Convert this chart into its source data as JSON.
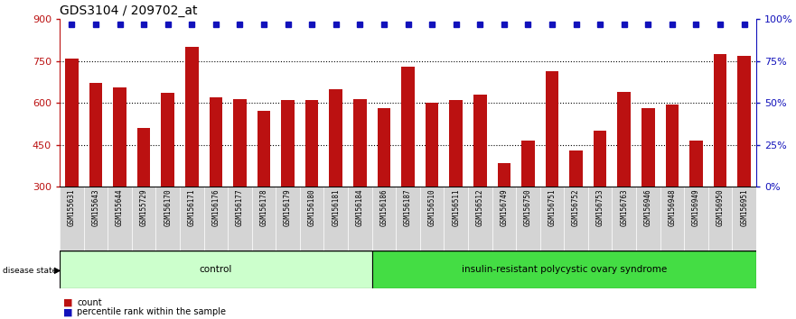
{
  "title": "GDS3104 / 209702_at",
  "samples": [
    "GSM155631",
    "GSM155643",
    "GSM155644",
    "GSM155729",
    "GSM156170",
    "GSM156171",
    "GSM156176",
    "GSM156177",
    "GSM156178",
    "GSM156179",
    "GSM156180",
    "GSM156181",
    "GSM156184",
    "GSM156186",
    "GSM156187",
    "GSM156510",
    "GSM156511",
    "GSM156512",
    "GSM156749",
    "GSM156750",
    "GSM156751",
    "GSM156752",
    "GSM156753",
    "GSM156763",
    "GSM156946",
    "GSM156948",
    "GSM156949",
    "GSM156950",
    "GSM156951"
  ],
  "bar_heights": [
    760,
    670,
    655,
    510,
    635,
    800,
    620,
    615,
    570,
    610,
    610,
    650,
    615,
    580,
    730,
    600,
    610,
    630,
    385,
    465,
    715,
    430,
    500,
    640,
    580,
    595,
    465,
    775,
    770
  ],
  "percentile_values": [
    97,
    97,
    97,
    97,
    97,
    97,
    97,
    97,
    97,
    97,
    97,
    97,
    97,
    97,
    97,
    97,
    97,
    97,
    97,
    97,
    97,
    97,
    97,
    97,
    97,
    97,
    97,
    97,
    97
  ],
  "group_labels": [
    "control",
    "insulin-resistant polycystic ovary syndrome"
  ],
  "group_sizes": [
    13,
    16
  ],
  "group_colors": [
    "#ccffcc",
    "#44dd44"
  ],
  "ylim_left": [
    300,
    900
  ],
  "ylim_right": [
    0,
    100
  ],
  "yticks_left": [
    300,
    450,
    600,
    750,
    900
  ],
  "yticks_right": [
    0,
    25,
    50,
    75,
    100
  ],
  "hgrid_values": [
    450,
    600,
    750
  ],
  "bar_color": "#bb1111",
  "dot_color": "#1111bb",
  "bg_color": "#ffffff",
  "label_bg_color": "#d4d4d4",
  "legend_items": [
    {
      "label": "count",
      "color": "#bb1111"
    },
    {
      "label": "percentile rank within the sample",
      "color": "#1111bb"
    }
  ]
}
